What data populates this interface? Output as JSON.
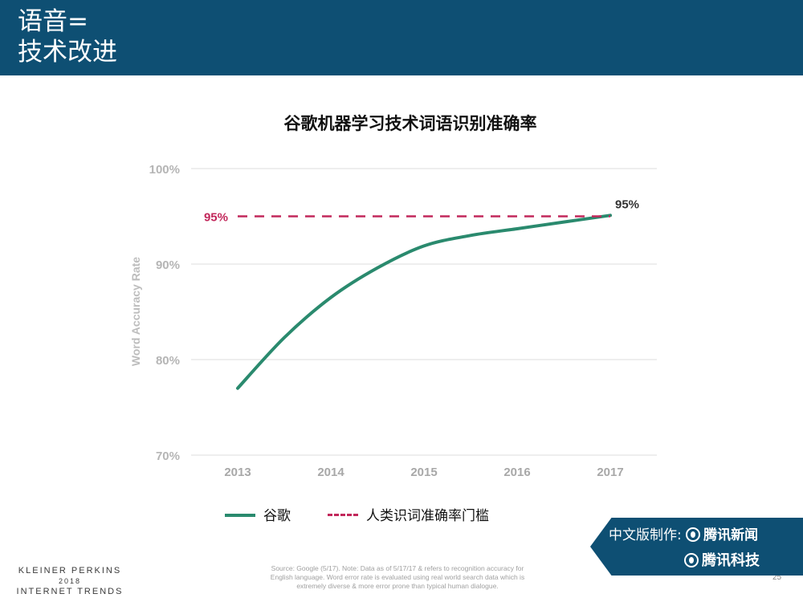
{
  "header": {
    "title_line1": "语音=",
    "title_line2": "技术改进"
  },
  "chart_data": {
    "type": "line",
    "title": "谷歌机器学习技术词语识别准确率",
    "ylabel": "Word Accuracy Rate",
    "xlabel": "",
    "x": [
      2013,
      2014,
      2015,
      2016,
      2017
    ],
    "x_tick_labels": [
      "2013",
      "2014",
      "2015",
      "2016",
      "2017"
    ],
    "ylim": [
      70,
      100
    ],
    "y_ticks": [
      70,
      80,
      90,
      100
    ],
    "y_tick_labels": [
      "70%",
      "80%",
      "90%",
      "100%"
    ],
    "grid": true,
    "series": [
      {
        "name": "谷歌",
        "style": "solid",
        "color": "#2a8a6e",
        "points": [
          [
            2013.0,
            77.0
          ],
          [
            2013.5,
            82.3
          ],
          [
            2014.0,
            86.5
          ],
          [
            2014.5,
            89.6
          ],
          [
            2015.0,
            91.9
          ],
          [
            2015.5,
            93.0
          ],
          [
            2016.0,
            93.7
          ],
          [
            2016.5,
            94.4
          ],
          [
            2017.0,
            95.1
          ]
        ]
      },
      {
        "name": "人类识词准确率门槛",
        "style": "dashed",
        "color": "#c2285b",
        "points": [
          [
            2013.0,
            95.0
          ],
          [
            2017.0,
            95.0
          ]
        ]
      }
    ],
    "annotations": [
      {
        "text": "95%",
        "x": 2013.0,
        "y": 95.0,
        "color": "#c2285b",
        "anchor": "left-of-start"
      },
      {
        "text": "95%",
        "x": 2017.0,
        "y": 95.0,
        "color": "#333333",
        "anchor": "above-end"
      }
    ],
    "legend_placement": "bottom"
  },
  "footer": {
    "source_lines": [
      "Source: Google (5/17). Note: Data as of 5/17/17 & refers to recognition accuracy for",
      "English language. Word error rate is evaluated using real world search data which is",
      "extremely diverse & more error prone than typical human dialogue."
    ],
    "brand_line1": "KLEINER PERKINS",
    "brand_year": "2018",
    "brand_line2": "INTERNET TRENDS",
    "page_number": "25"
  },
  "credit": {
    "prefix": "中文版制作:",
    "news_name": "腾讯新闻",
    "tech_name": "腾讯科技"
  }
}
